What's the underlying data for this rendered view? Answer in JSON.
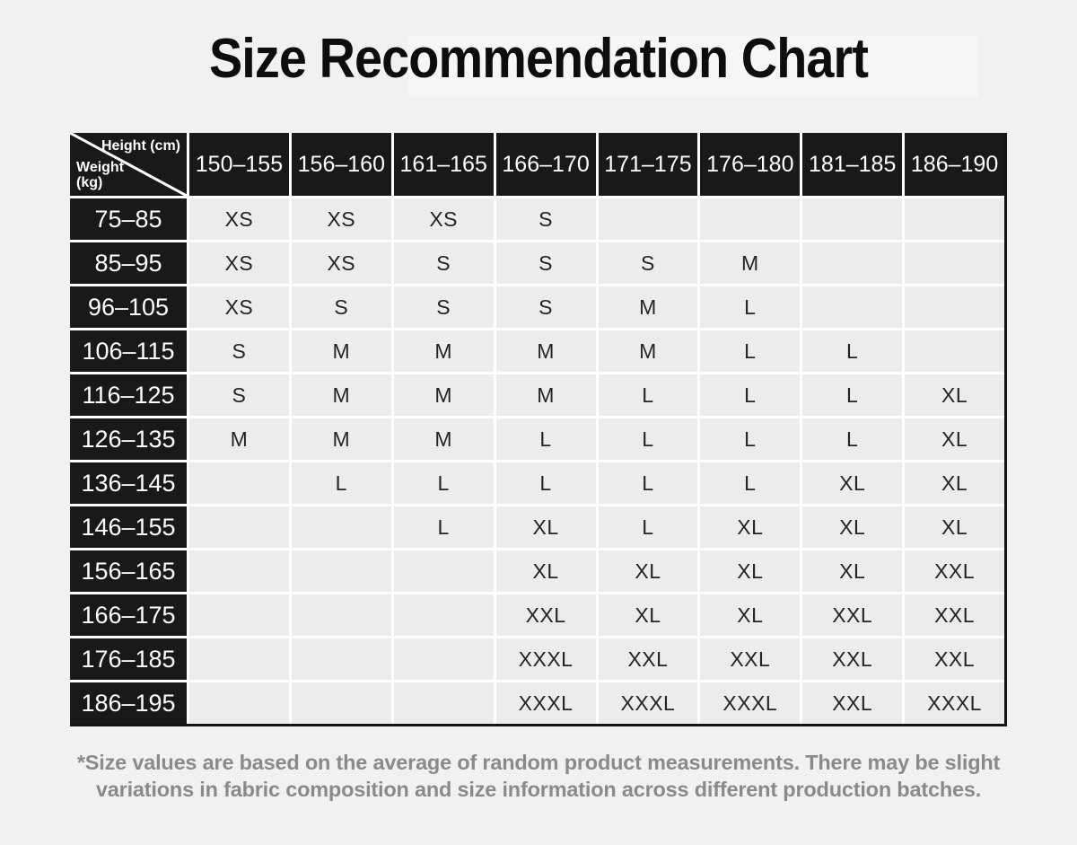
{
  "title": "Size Recommendation Chart",
  "chart_data": {
    "type": "table",
    "title": "Size Recommendation Chart",
    "corner": {
      "height_label": "Height (cm)",
      "weight_label": "Weight (kg)"
    },
    "height_columns_cm": [
      "150–155",
      "156–160",
      "161–165",
      "166–170",
      "171–175",
      "176–180",
      "181–185",
      "186–190"
    ],
    "rows": [
      {
        "weight_kg": "75–85",
        "sizes": [
          "XS",
          "XS",
          "XS",
          "S",
          "",
          "",
          "",
          ""
        ]
      },
      {
        "weight_kg": "85–95",
        "sizes": [
          "XS",
          "XS",
          "S",
          "S",
          "S",
          "M",
          "",
          ""
        ]
      },
      {
        "weight_kg": "96–105",
        "sizes": [
          "XS",
          "S",
          "S",
          "S",
          "M",
          "L",
          "",
          ""
        ]
      },
      {
        "weight_kg": "106–115",
        "sizes": [
          "S",
          "M",
          "M",
          "M",
          "M",
          "L",
          "L",
          ""
        ]
      },
      {
        "weight_kg": "116–125",
        "sizes": [
          "S",
          "M",
          "M",
          "M",
          "L",
          "L",
          "L",
          "XL"
        ]
      },
      {
        "weight_kg": "126–135",
        "sizes": [
          "M",
          "M",
          "M",
          "L",
          "L",
          "L",
          "L",
          "XL"
        ]
      },
      {
        "weight_kg": "136–145",
        "sizes": [
          "",
          "L",
          "L",
          "L",
          "L",
          "L",
          "XL",
          "XL"
        ]
      },
      {
        "weight_kg": "146–155",
        "sizes": [
          "",
          "",
          "L",
          "XL",
          "L",
          "XL",
          "XL",
          "XL"
        ]
      },
      {
        "weight_kg": "156–165",
        "sizes": [
          "",
          "",
          "",
          "XL",
          "XL",
          "XL",
          "XL",
          "XXL"
        ]
      },
      {
        "weight_kg": "166–175",
        "sizes": [
          "",
          "",
          "",
          "XXL",
          "XL",
          "XL",
          "XXL",
          "XXL"
        ]
      },
      {
        "weight_kg": "176–185",
        "sizes": [
          "",
          "",
          "",
          "XXXL",
          "XXL",
          "XXL",
          "XXL",
          "XXL"
        ]
      },
      {
        "weight_kg": "186–195",
        "sizes": [
          "",
          "",
          "",
          "XXXL",
          "XXXL",
          "XXXL",
          "XXL",
          "XXXL"
        ]
      }
    ],
    "footnote": "*Size values are based on the average of random product measurements. There may be slight variations in fabric composition and size information across different production batches."
  },
  "colors": {
    "page_bg": "#f1f1f1",
    "header_cell_bg": "#191919",
    "body_cell_bg": "#ececec",
    "grid_gap": "#ffffff",
    "table_border": "#141414",
    "title_text": "#0d0d0d",
    "cell_text": "#242424",
    "header_text": "#ffffff",
    "footnote_text": "#8a8a8a"
  }
}
